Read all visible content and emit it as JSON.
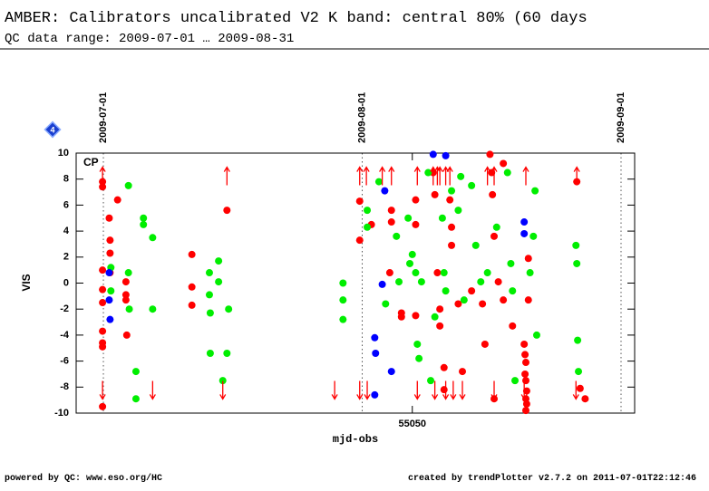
{
  "chart_data": {
    "type": "scatter",
    "title": "AMBER: Calibrators uncalibrated V2 K band: central 80% (60 days",
    "subtitle": "QC data range: 2009-07-01 … 2009-08-31",
    "x_label": "mjd-obs",
    "y_label": "VIS",
    "annotation": "CP",
    "badge": "4",
    "footer_left": "powered by QC: www.eso.org/HC",
    "footer_right": "created by trendPlotter v2.7.2 on 2011-07-01T22:12:46",
    "xlim": [
      55009.74,
      55076.63
    ],
    "ylim": [
      -10,
      10
    ],
    "xticks": [
      55050
    ],
    "yticks": [
      -10,
      -8,
      -6,
      -4,
      -2,
      0,
      2,
      4,
      6,
      8,
      10
    ],
    "date_markers": [
      {
        "value": 55013,
        "label": "2009-07-01"
      },
      {
        "value": 55044,
        "label": "2009-08-01"
      },
      {
        "value": 55075,
        "label": "2009-09-01"
      }
    ],
    "series": [
      {
        "marker": "dot",
        "color": "#ff0000",
        "x": [
          55012.9,
          55012.9,
          55012.9,
          55012.9,
          55012.9,
          55012.9,
          55012.9,
          55012.9,
          55012.9,
          55013.7,
          55013.8,
          55013.8,
          55013.8,
          55014.7,
          55015.7,
          55015.7,
          55015.7,
          55015.8,
          55023.6,
          55023.6,
          55023.6,
          55027.8,
          55043.7,
          55043.7,
          55045.1,
          55047.3,
          55047.5,
          55047.5,
          55048.7,
          55048.7,
          55050.4,
          55050.4,
          55050.4,
          55052.5,
          55052.7,
          55053.0,
          55053.3,
          55053.3,
          55053.8,
          55053.8,
          55054.5,
          55054.7,
          55054.7,
          55055.5,
          55056.0,
          55057.1,
          55058.4,
          55058.7,
          55059.3,
          55059.5,
          55059.6,
          55059.8,
          55059.8,
          55060.3,
          55060.9,
          55060.9,
          55062.0,
          55063.4,
          55063.6,
          55063.6,
          55063.6,
          55063.6,
          55063.9,
          55063.9,
          55069.7,
          55070.1,
          55070.7,
          55063.5,
          55063.5,
          55063.7,
          55063.7
        ],
        "values": [
          7.8,
          7.4,
          1,
          -0.5,
          -1.5,
          -3.7,
          -4.6,
          -4.9,
          -9.5,
          5,
          3.3,
          2.3,
          0.8,
          6.4,
          0.1,
          -0.9,
          -1.3,
          -4,
          2.2,
          -0.3,
          -1.7,
          5.6,
          6.3,
          3.3,
          4.5,
          0.8,
          5.6,
          4.7,
          -2.3,
          -2.6,
          6.4,
          4.5,
          -2.5,
          8.5,
          6.8,
          0.8,
          -2,
          -3.3,
          -6.5,
          -8.2,
          6.4,
          4.3,
          2.9,
          -1.6,
          -6.8,
          -0.6,
          -1.6,
          -4.7,
          9.9,
          8.5,
          6.8,
          3.6,
          -8.9,
          0.1,
          9.2,
          -1.3,
          -3.3,
          -4.7,
          -6.1,
          -7.5,
          -8.9,
          -9.8,
          1.9,
          -1.3,
          7.8,
          -8.1,
          -8.9,
          -5.5,
          -7,
          -8.3,
          -9.3
        ]
      },
      {
        "marker": "dot",
        "color": "#00ee00",
        "x": [
          55013.9,
          55013.9,
          55016.0,
          55016.0,
          55016.1,
          55016.9,
          55016.9,
          55017.8,
          55017.8,
          55018.9,
          55018.9,
          55025.7,
          55025.7,
          55025.8,
          55025.8,
          55026.8,
          55026.8,
          55027.3,
          55027.8,
          55028.0,
          55041.7,
          55041.7,
          55041.7,
          55044.6,
          55044.6,
          55046.0,
          55046.8,
          55048.1,
          55048.4,
          55049.5,
          55049.7,
          55050.0,
          55050.4,
          55050.6,
          55050.8,
          55051.1,
          55051.9,
          55052.2,
          55052.7,
          55053.6,
          55053.8,
          55054.0,
          55054.7,
          55055.5,
          55055.8,
          55056.2,
          55057.1,
          55057.6,
          55058.2,
          55059.0,
          55060.1,
          55061.4,
          55061.8,
          55062.0,
          55062.3,
          55064.1,
          55064.5,
          55064.7,
          55064.9,
          55069.6,
          55069.7,
          55069.8,
          55069.9
        ],
        "values": [
          1.2,
          -0.6,
          7.5,
          0.8,
          -2,
          -6.8,
          -8.9,
          5,
          4.5,
          3.5,
          -2,
          0.8,
          -0.9,
          -2.3,
          -5.4,
          1.7,
          0.1,
          -7.5,
          -5.4,
          -2,
          0,
          -1.3,
          -2.8,
          5.6,
          4.3,
          7.8,
          -1.6,
          3.6,
          0.1,
          5,
          1.5,
          2.2,
          0.8,
          -4.7,
          -5.8,
          0.1,
          8.5,
          -7.5,
          -2.6,
          5,
          0.8,
          -0.6,
          7.1,
          5.6,
          8.2,
          -1.3,
          7.5,
          2.9,
          0.1,
          0.8,
          4.3,
          8.5,
          1.5,
          -0.6,
          -7.5,
          0.8,
          3.6,
          7.1,
          -4,
          2.9,
          1.5,
          -4.4,
          -6.8
        ]
      },
      {
        "marker": "dot",
        "color": "#0000ff",
        "x": [
          55013.7,
          55013.7,
          55013.8,
          55045.5,
          55045.6,
          55046.4,
          55046.7,
          55047.5,
          55045.5,
          55052.5,
          55054.0,
          55063.4,
          55063.4
        ],
        "values": [
          0.8,
          -1.3,
          -2.8,
          -4.2,
          -5.4,
          -0.1,
          7.1,
          -6.8,
          -8.6,
          9.9,
          9.8,
          4.7,
          3.8
        ]
      },
      {
        "marker": "arrow-up",
        "color": "#ff0000",
        "x": [
          55012.9,
          55027.8,
          55043.7,
          55044.5,
          55046.4,
          55047.5,
          55050.6,
          55052.5,
          55053.0,
          55053.3,
          55054.0,
          55054.5,
          55059.0,
          55059.8,
          55063.6,
          55069.7
        ],
        "values": [
          8.5,
          8.5,
          8.5,
          8.5,
          8.5,
          8.5,
          8.5,
          8.5,
          8.5,
          8.5,
          8.5,
          8.5,
          8.5,
          8.5,
          8.5,
          8.5
        ]
      },
      {
        "marker": "arrow-down",
        "color": "#ff0000",
        "x": [
          55012.9,
          55018.9,
          55027.3,
          55040.7,
          55043.7,
          55044.6,
          55050.6,
          55052.7,
          55054.0,
          55054.9,
          55056.0,
          55059.8,
          55063.4,
          55069.6
        ],
        "values": [
          -8.5,
          -8.5,
          -8.5,
          -8.5,
          -8.5,
          -8.5,
          -8.5,
          -8.5,
          -8.5,
          -8.5,
          -8.5,
          -8.5,
          -8.5,
          -8.5
        ]
      }
    ]
  }
}
